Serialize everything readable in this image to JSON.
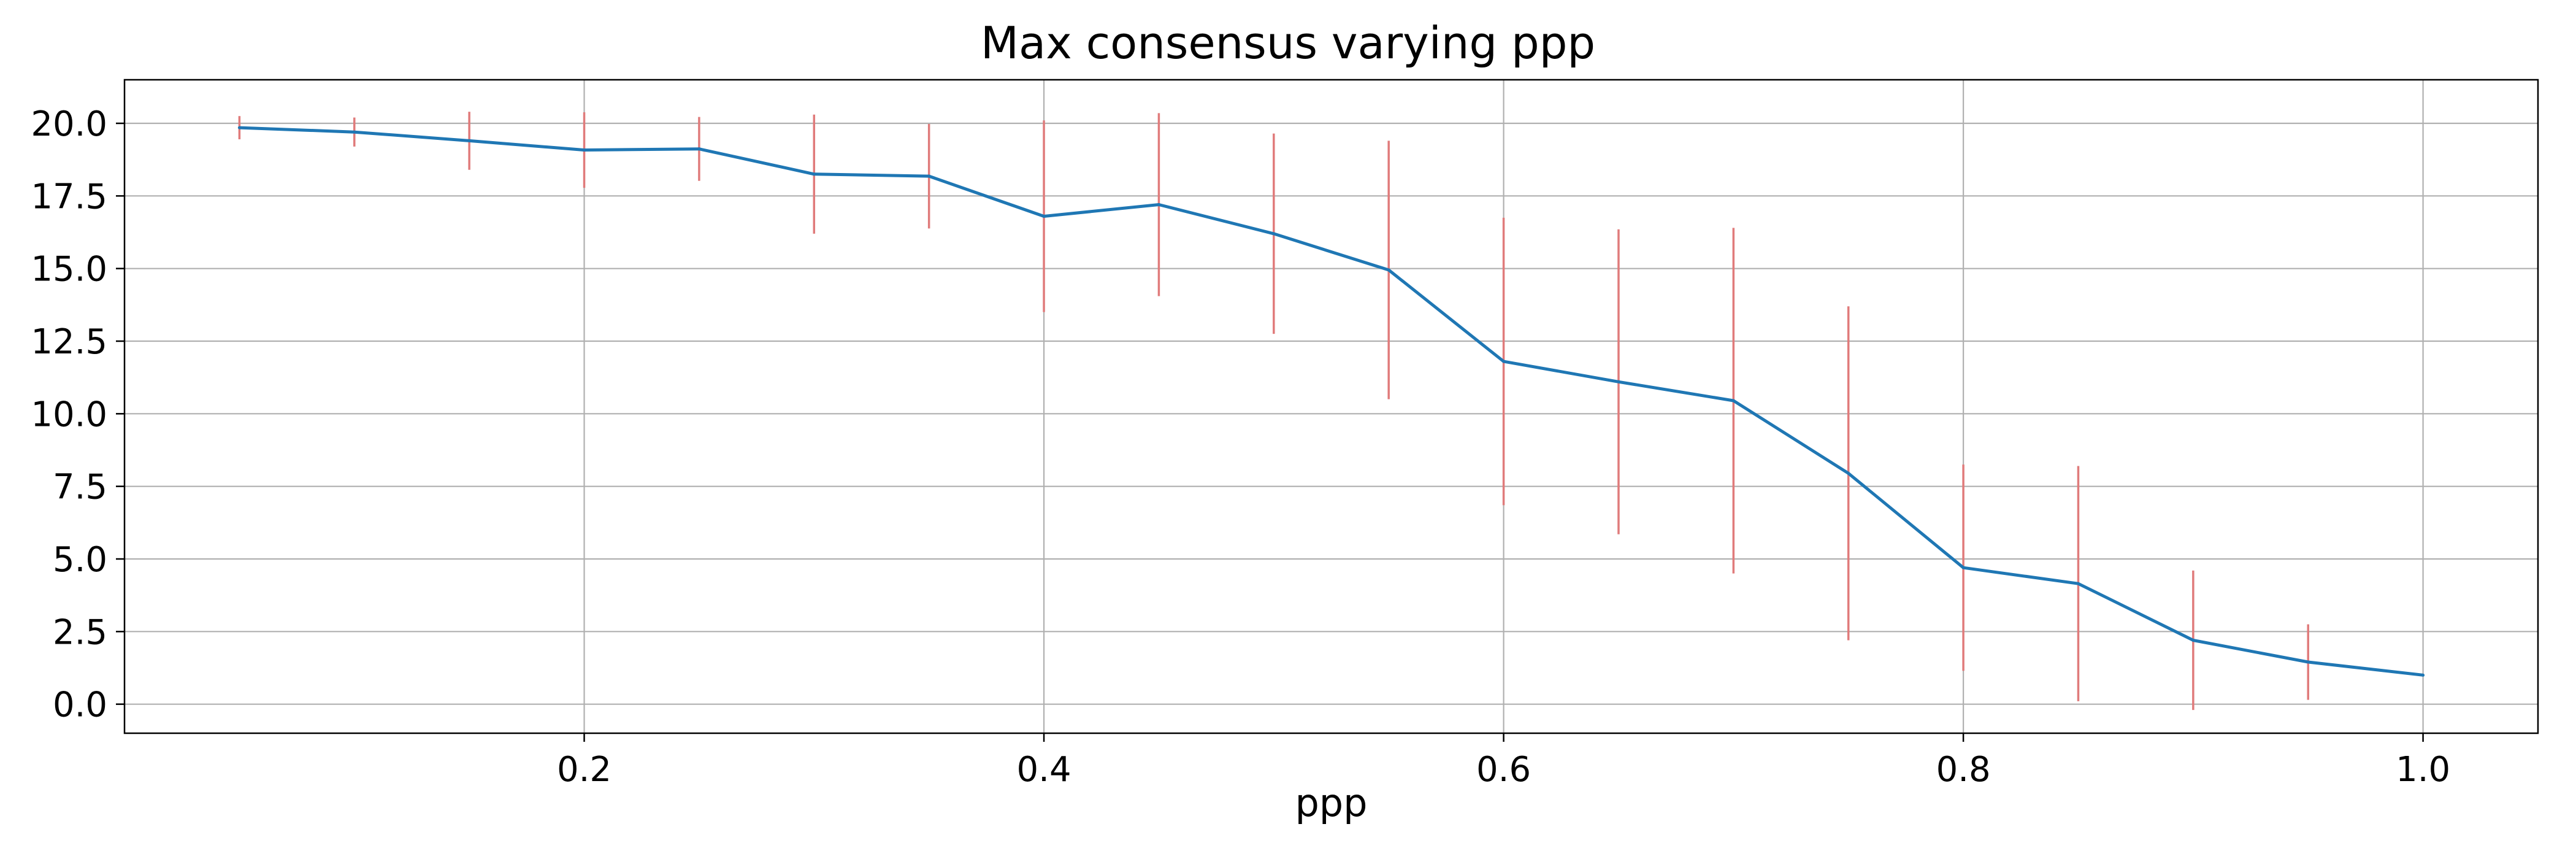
{
  "chart_data": {
    "type": "line",
    "title": "Max consensus varying ppp",
    "xlabel": "ppp",
    "ylabel": "",
    "xlim": [
      0.0,
      1.05
    ],
    "ylim": [
      -1.0,
      21.5
    ],
    "x_ticks": [
      0.2,
      0.4,
      0.6,
      0.8,
      1.0
    ],
    "x_tick_labels": [
      "0.2",
      "0.4",
      "0.6",
      "0.8",
      "1.0"
    ],
    "y_ticks": [
      0.0,
      2.5,
      5.0,
      7.5,
      10.0,
      12.5,
      15.0,
      17.5,
      20.0
    ],
    "y_tick_labels": [
      "0.0",
      "2.5",
      "5.0",
      "7.5",
      "10.0",
      "12.5",
      "15.0",
      "17.5",
      "20.0"
    ],
    "grid": true,
    "x": [
      0.05,
      0.1,
      0.15,
      0.2,
      0.25,
      0.3,
      0.35,
      0.4,
      0.45,
      0.5,
      0.55,
      0.6,
      0.65,
      0.7,
      0.75,
      0.8,
      0.85,
      0.9,
      0.95,
      1.0
    ],
    "series": [
      {
        "values": [
          19.85,
          19.7,
          19.4,
          19.08,
          19.12,
          18.25,
          18.18,
          16.8,
          17.2,
          16.2,
          14.95,
          11.8,
          11.1,
          10.45,
          7.95,
          4.7,
          4.15,
          2.2,
          1.45,
          1.0
        ],
        "error": [
          0.4,
          0.5,
          1.0,
          1.3,
          1.1,
          2.05,
          1.8,
          3.3,
          3.15,
          3.45,
          4.45,
          4.95,
          5.25,
          5.95,
          5.75,
          3.55,
          4.05,
          2.4,
          1.3,
          0.0
        ],
        "color": "#1f77b4"
      }
    ],
    "error_color": "#e07b7b",
    "frame_color": "#000000",
    "grid_color": "#b0b0b0"
  }
}
